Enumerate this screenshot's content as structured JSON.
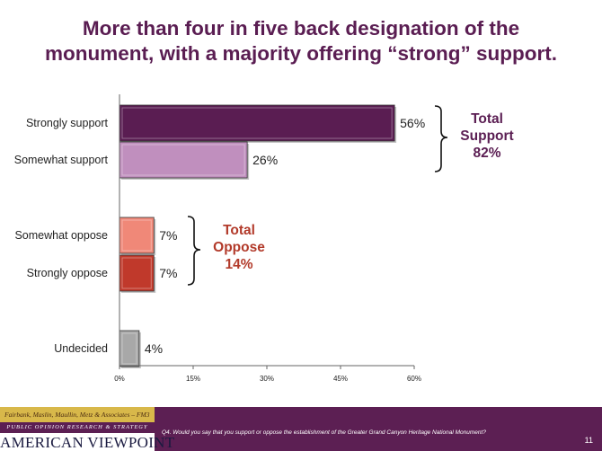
{
  "slide": {
    "title_line1": "More than four in five back designation of the",
    "title_line2": "monument, with a majority offering “strong” support.",
    "number": "11"
  },
  "chart_data": {
    "type": "bar",
    "orientation": "horizontal",
    "categories": [
      "Strongly support",
      "Somewhat support",
      "Somewhat oppose",
      "Strongly oppose",
      "Undecided"
    ],
    "values": [
      56,
      26,
      7,
      7,
      4
    ],
    "value_labels": [
      "56%",
      "26%",
      "7%",
      "7%",
      "4%"
    ],
    "colors": [
      "#5a1d52",
      "#c08fbe",
      "#f08878",
      "#c0392b",
      "#a8a8a8"
    ],
    "xlim": [
      0,
      60
    ],
    "xticks": [
      "0%",
      "15%",
      "30%",
      "45%",
      "60%"
    ],
    "grid": false,
    "annotations": {
      "support": {
        "line1": "Total",
        "line2": "Support",
        "line3": "82%",
        "color": "#5a1d52"
      },
      "oppose": {
        "line1": "Total",
        "line2": "Oppose",
        "line3": "14%",
        "color": "#b23a2a"
      }
    }
  },
  "footer": {
    "logo_line1": "Fairbank, Maslin, Maullin, Metz & Associates – FM3",
    "logo_line2": "PUBLIC OPINION RESEARCH & STRATEGY",
    "logo_line3": "AMERICAN VIEWPOINT",
    "question": "Q4. Would you say that you support or oppose the establishment of the Greater Grand Canyon Heritage National Monument?"
  }
}
